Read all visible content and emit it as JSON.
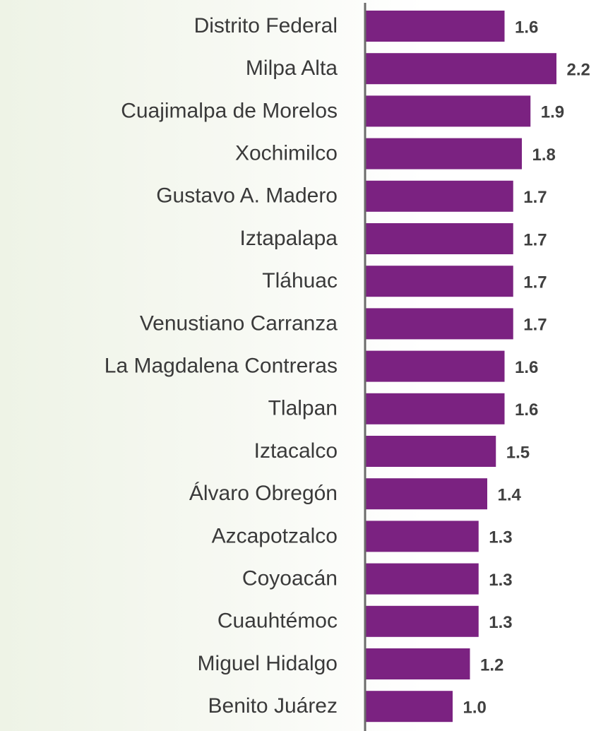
{
  "chart_data": {
    "type": "bar",
    "orientation": "horizontal",
    "categories": [
      "Distrito Federal",
      "Milpa Alta",
      "Cuajimalpa de Morelos",
      "Xochimilco",
      "Gustavo A. Madero",
      "Iztapalapa",
      "Tláhuac",
      "Venustiano Carranza",
      "La Magdalena Contreras",
      "Tlalpan",
      "Iztacalco",
      "Álvaro Obregón",
      "Azcapotzalco",
      "Coyoacán",
      "Cuauhtémoc",
      "Miguel Hidalgo",
      "Benito Juárez"
    ],
    "values": [
      1.6,
      2.2,
      1.9,
      1.8,
      1.7,
      1.7,
      1.7,
      1.7,
      1.6,
      1.6,
      1.5,
      1.4,
      1.3,
      1.3,
      1.3,
      1.2,
      1.0
    ],
    "value_labels": [
      "1.6",
      "2.2",
      "1.9",
      "1.8",
      "1.7",
      "1.7",
      "1.7",
      "1.7",
      "1.6",
      "1.6",
      "1.5",
      "1.4",
      "1.3",
      "1.3",
      "1.3",
      "1.2",
      "1.0"
    ],
    "color": "#7b2281",
    "xlim": [
      0,
      2.8
    ]
  }
}
